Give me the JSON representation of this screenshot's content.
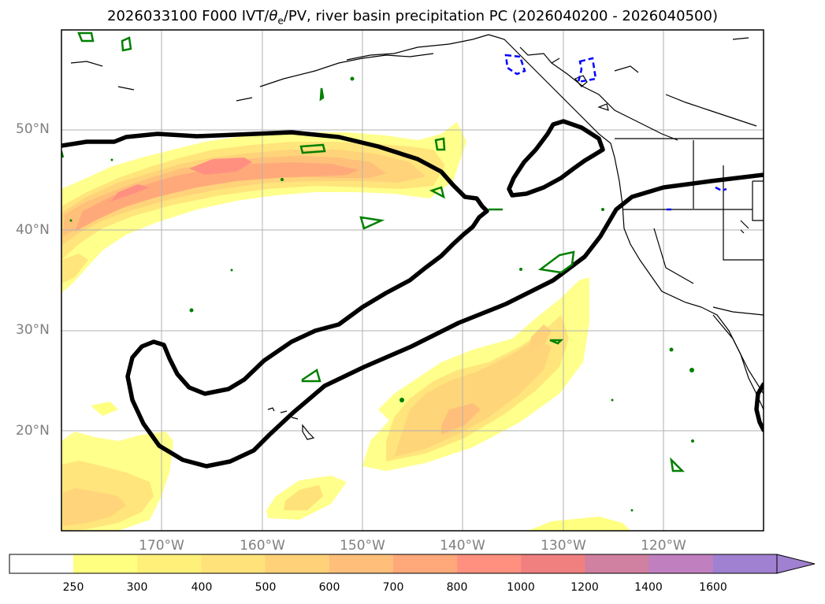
{
  "title_main": "2026033100 F000 IVT/",
  "title_symbol": "θ",
  "title_sub": "e",
  "title_rest": "/PV, river basin precipitation PC (2026040200 - 2026040500)",
  "lat_labels": [
    "50°N",
    "40°N",
    "30°N",
    "20°N"
  ],
  "lon_labels": [
    "170°W",
    "160°W",
    "150°W",
    "140°W",
    "130°W",
    "120°W"
  ],
  "colorbar": {
    "labels": [
      "250",
      "300",
      "400",
      "500",
      "600",
      "700",
      "800",
      "1000",
      "1200",
      "1400",
      "1600"
    ],
    "colors": [
      "#ffff80",
      "#fff07a",
      "#ffe27a",
      "#ffd27a",
      "#ffbf7a",
      "#ffa87a",
      "#ff9080",
      "#f08080",
      "#d080a0",
      "#c080c0",
      "#a080d0"
    ],
    "extend": "max"
  },
  "colors": {
    "ivt_contour": "#000000",
    "theta_contour": "#008000",
    "pv_contour": "#0000ff",
    "grid": "#b0b0b0"
  }
}
